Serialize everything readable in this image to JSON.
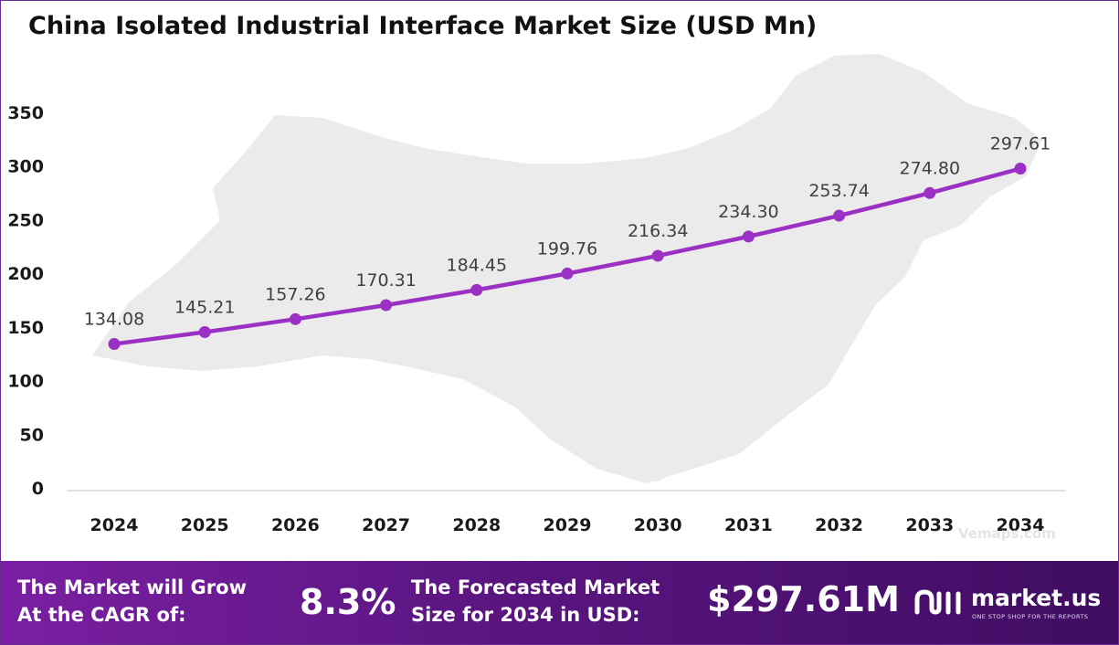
{
  "title": "China Isolated Industrial Interface Market Size (USD Mn)",
  "watermark": "Vemaps.com",
  "chart_data": {
    "type": "line",
    "title": "China Isolated Industrial Interface Market Size (USD Mn)",
    "xlabel": "",
    "ylabel": "",
    "categories": [
      "2024",
      "2025",
      "2026",
      "2027",
      "2028",
      "2029",
      "2030",
      "2031",
      "2032",
      "2033",
      "2034"
    ],
    "series": [
      {
        "values": [
          134.08,
          145.21,
          157.26,
          170.31,
          184.45,
          199.76,
          216.34,
          234.3,
          253.74,
          274.8,
          297.61
        ]
      }
    ],
    "data_labels": [
      "134.08",
      "145.21",
      "157.26",
      "170.31",
      "184.45",
      "199.76",
      "216.34",
      "234.30",
      "253.74",
      "274.80",
      "297.61"
    ],
    "yticks": [
      "0",
      "50",
      "100",
      "150",
      "200",
      "250",
      "300",
      "350"
    ],
    "ylim": [
      0,
      350
    ],
    "grid": false,
    "legend": "none",
    "line_color": "#9b30c4"
  },
  "footer": {
    "cagr_label_line1": "The Market will Grow",
    "cagr_label_line2": "At the CAGR of:",
    "cagr_value": "8.3%",
    "forecast_label_line1": "The Forecasted Market",
    "forecast_label_line2": "Size for 2034 in USD:",
    "forecast_value": "$297.61M",
    "brand_name": "market.us",
    "brand_tagline": "ONE STOP SHOP FOR THE REPORTS"
  }
}
